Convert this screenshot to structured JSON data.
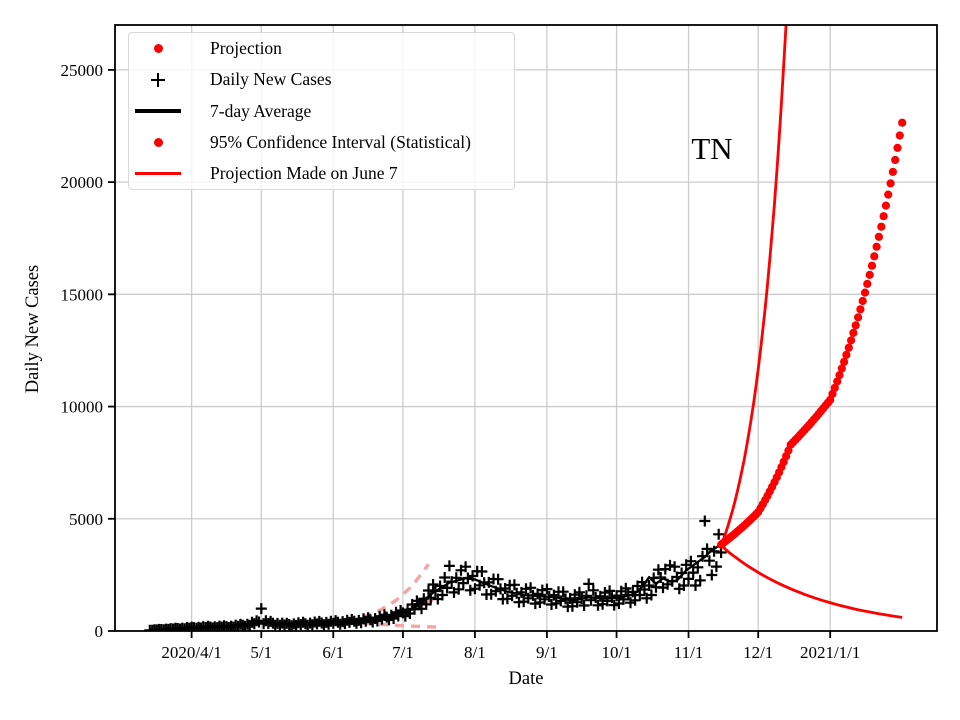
{
  "chart_data": {
    "type": "scatter",
    "title": "",
    "xlabel": "Date",
    "ylabel": "Daily New Cases",
    "annotation": "TN",
    "grid": true,
    "xlim": [
      "2020-02-28",
      "2021-02-16"
    ],
    "ylim": [
      0,
      27000
    ],
    "x_ticks": [
      {
        "label": "2020/4/1",
        "date": "2020-04-01"
      },
      {
        "label": "5/1",
        "date": "2020-05-01"
      },
      {
        "label": "6/1",
        "date": "2020-06-01"
      },
      {
        "label": "7/1",
        "date": "2020-07-01"
      },
      {
        "label": "8/1",
        "date": "2020-08-01"
      },
      {
        "label": "9/1",
        "date": "2020-09-01"
      },
      {
        "label": "10/1",
        "date": "2020-10-01"
      },
      {
        "label": "11/1",
        "date": "2020-11-01"
      },
      {
        "label": "12/1",
        "date": "2020-12-01"
      },
      {
        "label": "2021/1/1",
        "date": "2021-01-01"
      }
    ],
    "y_ticks": [
      {
        "label": "0",
        "value": 0
      },
      {
        "label": "5000",
        "value": 5000
      },
      {
        "label": "10000",
        "value": 10000
      },
      {
        "label": "15000",
        "value": 15000
      },
      {
        "label": "20000",
        "value": 20000
      },
      {
        "label": "25000",
        "value": 25000
      }
    ],
    "legend": {
      "position": "upper left",
      "items": [
        {
          "label": "Projection",
          "marker": "dot",
          "color": "#ff0000"
        },
        {
          "label": "Daily New Cases",
          "marker": "plus",
          "color": "#000000"
        },
        {
          "label": "7-day Average",
          "marker": "line",
          "color": "#000000"
        },
        {
          "label": "95% Confidence Interval (Statistical)",
          "marker": "dot",
          "color": "#ff0000"
        },
        {
          "label": "Projection Made on June 7",
          "marker": "line",
          "color": "#ff0000"
        }
      ]
    },
    "colors": {
      "projection": "#ff0000",
      "data": "#000000",
      "june7_dashed": "#f5a5a5",
      "grid": "#cccccc"
    },
    "series": {
      "daily_new_cases": {
        "start_date": "2020-03-14",
        "step_days": 1,
        "values": [
          32,
          30,
          52,
          47,
          72,
          67,
          57,
          85,
          71,
          107,
          89,
          126,
          110,
          89,
          127,
          103,
          155,
          126,
          174,
          150,
          120,
          170,
          134,
          196,
          155,
          209,
          176,
          138,
          191,
          150,
          219,
          174,
          233,
          196,
          154,
          212,
          173,
          263,
          215,
          300,
          260,
          210,
          297,
          248,
          386,
          322,
          455,
          401,
          1000,
          330,
          454,
          339,
          427,
          343,
          257,
          339,
          254,
          354,
          267,
          342,
          289,
          227,
          315,
          248,
          365,
          289,
          390,
          327,
          257,
          353,
          276,
          402,
          318,
          427,
          358,
          280,
          385,
          301,
          438,
          346,
          464,
          390,
          305,
          421,
          330,
          483,
          381,
          512,
          433,
          341,
          473,
          372,
          546,
          433,
          586,
          501,
          399,
          559,
          445,
          660,
          528,
          720,
          619,
          496,
          699,
          558,
          831,
          669,
          915,
          808,
          663,
          954,
          779,
          1180,
          966,
          1342,
          1198,
          991,
          1438,
          1183,
          1804,
          1485,
          2074,
          1782,
          1427,
          2007,
          1605,
          2385,
          1919,
          2900,
          2201,
          1721,
          2370,
          1857,
          2706,
          2135,
          2867,
          2361,
          1814,
          2452,
          1886,
          2663,
          2037,
          2649,
          2150,
          1627,
          2166,
          1640,
          2318,
          1775,
          2309,
          1876,
          1421,
          1893,
          1435,
          2040,
          1570,
          2057,
          1681,
          1281,
          1719,
          1312,
          1880,
          1459,
          1926,
          1587,
          1220,
          1651,
          1271,
          1821,
          1413,
          1865,
          1536,
          1181,
          1598,
          1230,
          1745,
          1340,
          1752,
          1428,
          1087,
          1453,
          1107,
          1618,
          1282,
          1725,
          1450,
          1136,
          1568,
          2100,
          1374,
          1813,
          1494,
          1147,
          1552,
          1195,
          1711,
          1340,
          1786,
          1486,
          1154,
          1575,
          1224,
          1770,
          1407,
          1900,
          1602,
          1259,
          1742,
          1370,
          2006,
          1604,
          2179,
          1847,
          1459,
          2029,
          1605,
          2360,
          1950,
          2733,
          2384,
          1934,
          2756,
          2081,
          2921,
          2220,
          2867,
          2404,
          1880,
          2586,
          2025,
          2950,
          2323,
          3111,
          2601,
          2028,
          2836,
          2255,
          3334,
          4900,
          3660,
          3131,
          2496,
          3551,
          2870,
          4307,
          3496
        ]
      },
      "avg_7day": {
        "start_date": "2020-03-14",
        "points": [
          [
            0,
            30
          ],
          [
            7,
            80
          ],
          [
            14,
            120
          ],
          [
            21,
            160
          ],
          [
            28,
            180
          ],
          [
            35,
            200
          ],
          [
            42,
            280
          ],
          [
            48,
            420
          ],
          [
            52,
            350
          ],
          [
            59,
            280
          ],
          [
            66,
            320
          ],
          [
            73,
            350
          ],
          [
            80,
            380
          ],
          [
            87,
            420
          ],
          [
            94,
            480
          ],
          [
            101,
            590
          ],
          [
            108,
            750
          ],
          [
            115,
            1100
          ],
          [
            122,
            1700
          ],
          [
            129,
            2150
          ],
          [
            136,
            2350
          ],
          [
            140,
            2300
          ],
          [
            147,
            2000
          ],
          [
            154,
            1750
          ],
          [
            161,
            1600
          ],
          [
            168,
            1550
          ],
          [
            175,
            1500
          ],
          [
            182,
            1350
          ],
          [
            189,
            1500
          ],
          [
            196,
            1450
          ],
          [
            203,
            1500
          ],
          [
            207,
            1600
          ],
          [
            210,
            1750
          ],
          [
            213,
            2100
          ],
          [
            215,
            2400
          ],
          [
            218,
            2100
          ],
          [
            221,
            2350
          ],
          [
            224,
            2200
          ],
          [
            227,
            2250
          ],
          [
            231,
            2700
          ],
          [
            235,
            3000
          ],
          [
            239,
            3300
          ],
          [
            242,
            3600
          ],
          [
            246,
            3850
          ]
        ]
      },
      "projection": {
        "start_date": "2020-11-15",
        "step_days": 1,
        "values": [
          3850,
          3928,
          4007,
          4088,
          4170,
          4254,
          4340,
          4428,
          4517,
          4608,
          4701,
          4796,
          4893,
          4992,
          5093,
          5195,
          5300,
          5473,
          5651,
          5835,
          6025,
          6221,
          6424,
          6633,
          6849,
          7072,
          7302,
          7540,
          7786,
          8039,
          8300,
          8406,
          8514,
          8623,
          8733,
          8845,
          8958,
          9072,
          9188,
          9306,
          9425,
          9545,
          9667,
          9791,
          9916,
          10043,
          10171,
          10300,
          10565,
          10837,
          11116,
          11402,
          11695,
          11996,
          12305,
          12622,
          12947,
          13280,
          13622,
          13973,
          14332,
          14701,
          15079,
          15467,
          15865,
          16274,
          16693,
          17122,
          17563,
          18015,
          18479,
          18954,
          19442,
          19943,
          20456,
          20983,
          21523,
          22077,
          22645
        ]
      },
      "ci_upper": {
        "start_date": "2020-11-15",
        "step_days": 1,
        "values": [
          3850,
          4076,
          4372,
          4689,
          5030,
          5395,
          5787,
          6207,
          6658,
          7141,
          7660,
          8216,
          8813,
          9453,
          10139,
          10875,
          11665,
          12512,
          13420,
          14395,
          15440,
          16561,
          17764,
          19053,
          20437,
          21921,
          23512,
          25219,
          27050
        ]
      },
      "ci_lower": {
        "start_date": "2020-11-15",
        "step_days": 2,
        "values": [
          3850,
          3626,
          3459,
          3301,
          3149,
          3005,
          2867,
          2735,
          2610,
          2490,
          2376,
          2267,
          2163,
          2064,
          1969,
          1879,
          1792,
          1710,
          1632,
          1557,
          1485,
          1417,
          1352,
          1290,
          1231,
          1174,
          1120,
          1069,
          1020,
          973,
          928,
          886,
          845,
          806,
          769,
          734,
          700,
          668,
          637,
          608
        ]
      },
      "june7_projection": {
        "start_date": "2020-06-07",
        "points": [
          [
            0,
            420
          ],
          [
            7,
            530
          ],
          [
            14,
            660
          ],
          [
            21,
            830
          ],
          [
            28,
            1040
          ],
          [
            35,
            1300
          ],
          [
            37,
            1390
          ]
        ]
      },
      "june7_ci_upper": {
        "start_date": "2020-06-07",
        "points": [
          [
            0,
            420
          ],
          [
            7,
            620
          ],
          [
            14,
            920
          ],
          [
            21,
            1360
          ],
          [
            28,
            2010
          ],
          [
            35,
            2970
          ]
        ]
      },
      "june7_ci_lower": {
        "start_date": "2020-06-07",
        "points": [
          [
            0,
            420
          ],
          [
            7,
            350
          ],
          [
            14,
            300
          ],
          [
            21,
            255
          ],
          [
            28,
            215
          ],
          [
            35,
            185
          ],
          [
            41,
            165
          ]
        ]
      }
    }
  }
}
